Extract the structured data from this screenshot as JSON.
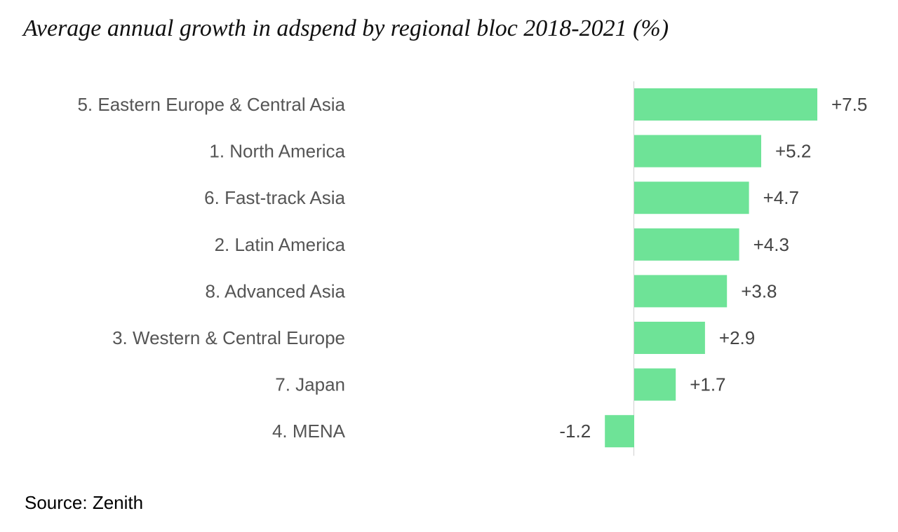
{
  "chart_data": {
    "type": "bar",
    "orientation": "horizontal",
    "title": "Average annual growth in adspend by regional bloc 2018-2021 (%)",
    "categories": [
      "5. Eastern Europe & Central Asia",
      "1. North America",
      "6. Fast-track Asia",
      "2. Latin America",
      "8. Advanced Asia",
      "3. Western & Central Europe",
      "7. Japan",
      "4. MENA"
    ],
    "values": [
      7.5,
      5.2,
      4.7,
      4.3,
      3.8,
      2.9,
      1.7,
      -1.2
    ],
    "value_labels": [
      "+7.5",
      "+5.2",
      "+4.7",
      "+4.3",
      "+3.8",
      "+2.9",
      "+1.7",
      "-1.2"
    ],
    "xlim": [
      -1.2,
      7.5
    ],
    "xlabel": "",
    "ylabel": "",
    "grid": false,
    "legend": "none",
    "bar_color": "#6ee397",
    "axis_color": "#d0d0d0"
  },
  "source": "Source: Zenith"
}
